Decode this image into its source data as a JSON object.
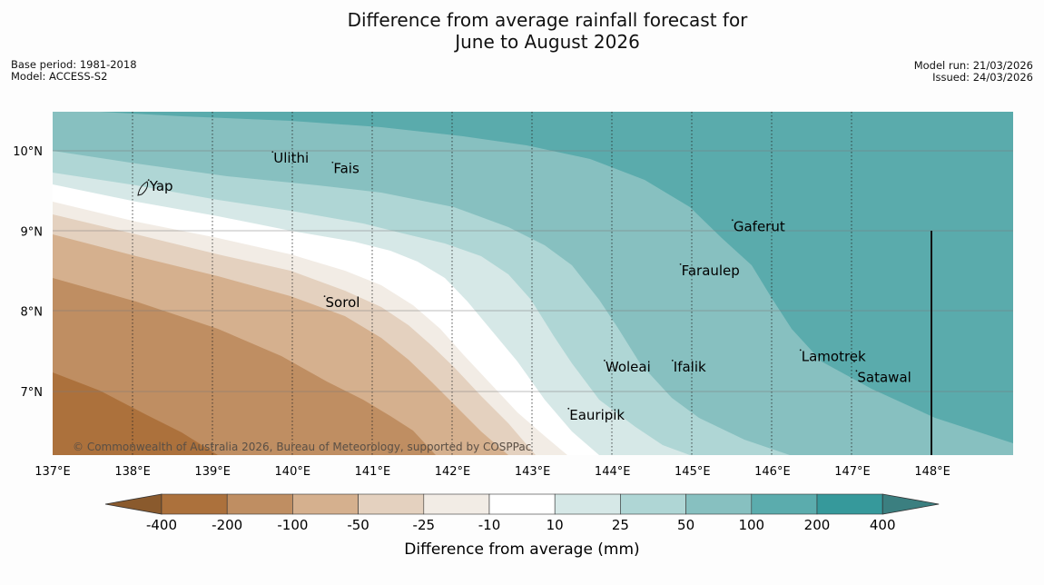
{
  "title_line1": "Difference from average rainfall forecast for",
  "title_line2": "June to August 2026",
  "meta_left": [
    "Base period: 1981-2018",
    "Model: ACCESS-S2"
  ],
  "meta_right": [
    "Model run: 21/03/2026",
    "Issued: 24/03/2026"
  ],
  "copyright": "© Commonwealth of Australia 2026, Bureau of Meteorology, supported by COSPPac",
  "lon_labels": [
    "137°E",
    "138°E",
    "139°E",
    "140°E",
    "141°E",
    "142°E",
    "143°E",
    "144°E",
    "145°E",
    "146°E",
    "147°E",
    "148°E"
  ],
  "lat_labels": [
    "10°N",
    "9°N",
    "8°N",
    "7°N"
  ],
  "places": [
    {
      "name": "Ulithi",
      "lon": 139.75,
      "lat": 9.85
    },
    {
      "name": "Fais",
      "lon": 140.5,
      "lat": 9.72
    },
    {
      "name": "Yap",
      "lon": 138.2,
      "lat": 9.5
    },
    {
      "name": "Gaferut",
      "lon": 145.5,
      "lat": 9.0
    },
    {
      "name": "Faraulep",
      "lon": 144.85,
      "lat": 8.45
    },
    {
      "name": "Sorol",
      "lon": 140.4,
      "lat": 8.05
    },
    {
      "name": "Woleai",
      "lon": 143.9,
      "lat": 7.25
    },
    {
      "name": "Ifalik",
      "lon": 144.75,
      "lat": 7.25
    },
    {
      "name": "Lamotrek",
      "lon": 146.35,
      "lat": 7.38
    },
    {
      "name": "Satawal",
      "lon": 147.05,
      "lat": 7.12
    },
    {
      "name": "Eauripik",
      "lon": 143.45,
      "lat": 6.65
    }
  ],
  "colorbar": {
    "label": "Difference from average (mm)",
    "ticks": [
      "-400",
      "-200",
      "-100",
      "-50",
      "-25",
      "-10",
      "10",
      "25",
      "50",
      "100",
      "200",
      "400"
    ],
    "colors": [
      "#8a5a2d",
      "#ac713c",
      "#bf8e62",
      "#d5b08e",
      "#e4d1bf",
      "#f2ece5",
      "#ffffff",
      "#d6e8e7",
      "#afd6d5",
      "#87c0c0",
      "#5bacad",
      "#36999b",
      "#3b7f80"
    ]
  }
}
